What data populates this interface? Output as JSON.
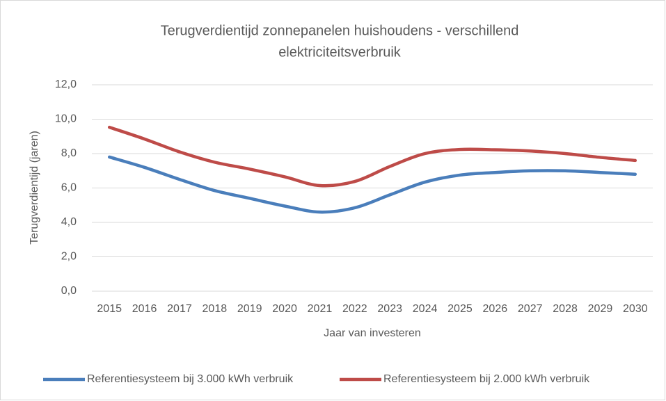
{
  "chart_data": {
    "type": "line",
    "title": [
      "Terugverdientijd zonnepanelen huishoudens - verschillend",
      "elektriciteitsverbruik"
    ],
    "x_label": "Jaar van investeren",
    "y_label": "Terugverdientijd (jaren)",
    "categories": [
      "2015",
      "2016",
      "2017",
      "2018",
      "2019",
      "2020",
      "2021",
      "2022",
      "2023",
      "2024",
      "2025",
      "2026",
      "2027",
      "2028",
      "2029",
      "2030"
    ],
    "series": [
      {
        "name": "Referentiesysteem bij 3.000 kWh verbruik",
        "color": "#4a7ebb",
        "values": [
          7.8,
          7.2,
          6.5,
          5.85,
          5.4,
          4.95,
          4.6,
          4.85,
          5.6,
          6.34,
          6.75,
          6.9,
          7.0,
          7.0,
          6.9,
          6.8
        ]
      },
      {
        "name": "Referentiesysteem bij 2.000 kWh verbruik",
        "color": "#be4b48",
        "values": [
          9.53,
          8.85,
          8.1,
          7.5,
          7.1,
          6.65,
          6.14,
          6.38,
          7.25,
          8.0,
          8.24,
          8.22,
          8.15,
          8.0,
          7.78,
          7.6
        ]
      }
    ],
    "ylim": [
      0,
      12
    ],
    "yticks": [
      {
        "value": 0,
        "label": "0,0"
      },
      {
        "value": 2,
        "label": "2,0"
      },
      {
        "value": 4,
        "label": "4,0"
      },
      {
        "value": 6,
        "label": "6,0"
      },
      {
        "value": 8,
        "label": "8,0"
      },
      {
        "value": 10,
        "label": "10,0"
      },
      {
        "value": 12,
        "label": "12,0"
      }
    ],
    "grid": true,
    "legend": "bottom"
  }
}
